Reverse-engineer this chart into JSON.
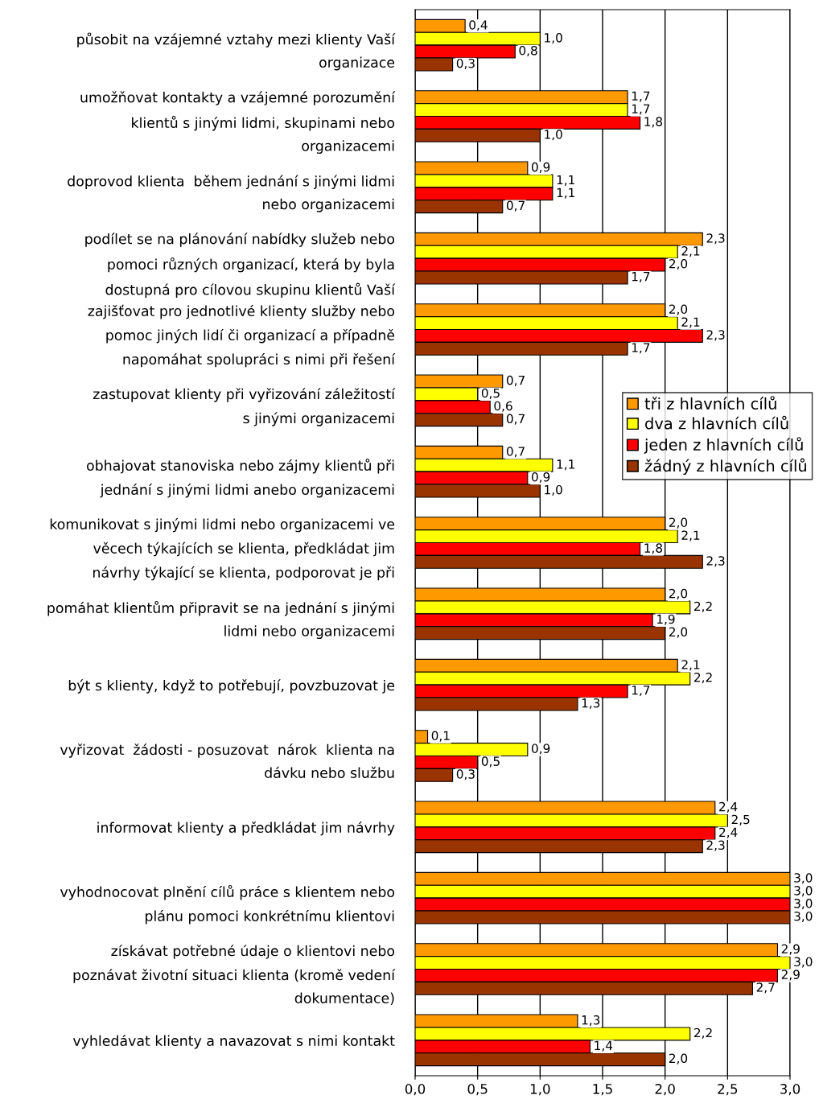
{
  "chart_data": {
    "type": "bar",
    "orientation": "horizontal",
    "categories": [
      "působit na vzájemné vztahy mezi klienty Vaší\norganizace",
      "umožňovat kontakty a vzájemné porozumění\nklientů s jinými lidmi, skupinami nebo\norganizacemi",
      "doprovod klienta  během jednání s jinými lidmi\nnebo organizacemi",
      "podílet se na plánování nabídky služeb nebo\npomoci různých organizací, která by byla\ndostupná pro cílovou skupinu klientů Vaší",
      "zajišťovat pro jednotlivé klienty služby nebo\npomoc jiných lidí či organizací a případně\nnapomáhat spolupráci s nimi při řešení",
      "zastupovat klienty při vyřizování záležitostí\ns jinými organizacemi",
      "obhajovat stanoviska nebo zájmy klientů při\njednání s jinými lidmi anebo organizacemi",
      "komunikovat s jinými lidmi nebo organizacemi ve\nvěcech týkajících se klienta, předkládat jim\nnávrhy týkající se klienta, podporovat je při",
      "pomáhat klientům připravit se na jednání s jinými\nlidmi nebo organizacemi",
      "být s klienty, když to potřebují, povzbuzovat je",
      "vyřizovat  žádosti - posuzovat  nárok  klienta na\ndávku nebo službu",
      "informovat klienty a předkládat jim návrhy",
      "vyhodnocovat plnění cílů práce s klientem nebo\nplánu pomoci konkrétnímu klientovi",
      "získávat potřebné údaje o klientovi nebo\npoznávat životní situaci klienta (kromě vedení\ndokumentace)",
      "vyhledávat klienty a navazovat s nimi kontakt"
    ],
    "series": [
      {
        "name": "tři z hlavních cílů",
        "color": "#ff9900",
        "values": [
          0.4,
          1.7,
          0.9,
          2.3,
          2.0,
          0.7,
          0.7,
          2.0,
          2.0,
          2.1,
          0.1,
          2.4,
          3.0,
          2.9,
          1.3
        ],
        "value_labels": [
          "0,4",
          "1,7",
          "0,9",
          "2,3",
          "2,0",
          "0,7",
          "0,7",
          "2,0",
          "2,0",
          "2,1",
          "0,1",
          "2,4",
          "3,0",
          "2,9",
          "1,3"
        ]
      },
      {
        "name": "dva z hlavních cílů",
        "color": "#ffff00",
        "values": [
          1.0,
          1.7,
          1.1,
          2.1,
          2.1,
          0.5,
          1.1,
          2.1,
          2.2,
          2.2,
          0.9,
          2.5,
          3.0,
          3.0,
          2.2
        ],
        "value_labels": [
          "1,0",
          "1,7",
          "1,1",
          "2,1",
          "2,1",
          "0,5",
          "1,1",
          "2,1",
          "2,2",
          "2,2",
          "0,9",
          "2,5",
          "3,0",
          "3,0",
          "2,2"
        ]
      },
      {
        "name": "jeden z hlavních cílů",
        "color": "#ff0000",
        "values": [
          0.8,
          1.8,
          1.1,
          2.0,
          2.3,
          0.6,
          0.9,
          1.8,
          1.9,
          1.7,
          0.5,
          2.4,
          3.0,
          2.9,
          1.4
        ],
        "value_labels": [
          "0,8",
          "1,8",
          "1,1",
          "2,0",
          "2,3",
          "0,6",
          "0,9",
          "1,8",
          "1,9",
          "1,7",
          "0,5",
          "2,4",
          "3,0",
          "2,9",
          "1,4"
        ]
      },
      {
        "name": "žádný z hlavních cílů",
        "color": "#993300",
        "values": [
          0.3,
          1.0,
          0.7,
          1.7,
          1.7,
          0.7,
          1.0,
          2.3,
          2.0,
          1.3,
          0.3,
          2.3,
          3.0,
          2.7,
          2.0
        ],
        "value_labels": [
          "0,3",
          "1,0",
          "0,7",
          "1,7",
          "1,7",
          "0,7",
          "1,0",
          "2,3",
          "2,0",
          "1,3",
          "0,3",
          "2,3",
          "3,0",
          "2,7",
          "2,0"
        ]
      }
    ],
    "xlim": [
      0,
      3
    ],
    "xticks": [
      {
        "value": 0,
        "label": "0,0"
      },
      {
        "value": 0.5,
        "label": "0,5"
      },
      {
        "value": 1,
        "label": "1,0"
      },
      {
        "value": 1.5,
        "label": "1,5"
      },
      {
        "value": 2,
        "label": "2,0"
      },
      {
        "value": 2.5,
        "label": "2,5"
      },
      {
        "value": 3,
        "label": "3,0"
      }
    ],
    "grid": "x",
    "legend": "right"
  }
}
